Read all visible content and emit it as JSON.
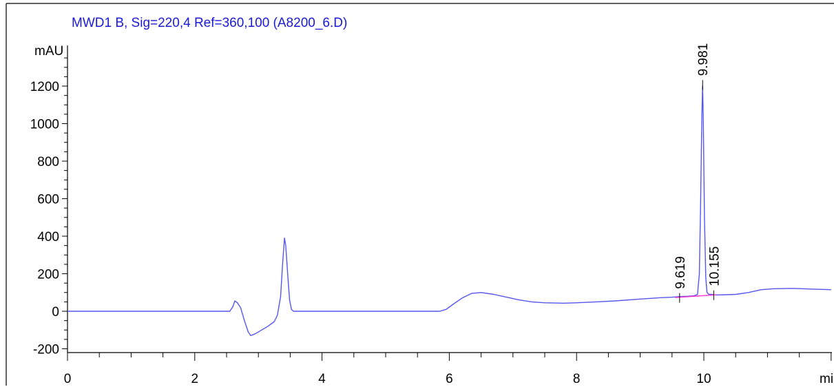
{
  "chart_data": {
    "type": "line",
    "title": "MWD1 B, Sig=220,4 Ref=360,100 (A8200_6.D)",
    "ylabel": "mAU",
    "xlabel": "min",
    "xlim": [
      0,
      12
    ],
    "ylim": [
      -220,
      1420
    ],
    "x_ticks": [
      0,
      2,
      4,
      6,
      8,
      10
    ],
    "y_ticks": [
      -200,
      0,
      200,
      400,
      600,
      800,
      1000,
      1200
    ],
    "colors": {
      "trace": "#5555f0",
      "baseline": "#ff33cc",
      "frame": "#000000",
      "title": "#1a1ad6"
    },
    "series": [
      {
        "x": [
          0.0,
          0.7,
          0.71,
          2.55,
          2.6,
          2.63,
          2.67,
          2.72,
          2.78,
          2.84,
          2.88,
          2.95,
          3.05,
          3.15,
          3.25,
          3.3,
          3.35,
          3.38,
          3.41,
          3.43,
          3.46,
          3.49,
          3.52,
          3.55,
          3.6,
          5.85,
          5.95,
          6.05,
          6.2,
          6.35,
          6.5,
          6.7,
          6.9,
          7.1,
          7.3,
          7.5,
          7.8,
          8.0,
          8.3,
          8.6,
          9.0,
          9.3,
          9.5,
          9.62,
          9.75,
          9.85,
          9.9,
          9.93,
          9.95,
          9.97,
          9.98,
          9.99,
          10.01,
          10.03,
          10.05,
          10.08,
          10.12,
          10.16,
          10.2,
          10.35,
          10.5,
          10.7,
          10.9,
          11.1,
          11.4,
          11.7,
          12.0
        ],
        "y": [
          0,
          0,
          0,
          0,
          25,
          55,
          45,
          20,
          -50,
          -110,
          -130,
          -120,
          -100,
          -80,
          -55,
          -20,
          80,
          250,
          390,
          350,
          200,
          60,
          10,
          0,
          0,
          0,
          10,
          35,
          70,
          95,
          100,
          90,
          75,
          60,
          50,
          45,
          43,
          45,
          50,
          55,
          65,
          72,
          75,
          78,
          80,
          83,
          90,
          200,
          600,
          1050,
          1200,
          1050,
          500,
          180,
          100,
          90,
          90,
          88,
          87,
          88,
          90,
          100,
          115,
          120,
          122,
          118,
          115
        ]
      }
    ],
    "baseline_segments": [
      {
        "x": [
          9.55,
          10.2
        ],
        "y": [
          73,
          88
        ]
      }
    ],
    "peaks": [
      {
        "label": "9.619",
        "x": 9.619,
        "y": 75
      },
      {
        "label": "9.981",
        "x": 9.981,
        "y": 1210
      },
      {
        "label": "10.155",
        "x": 10.155,
        "y": 89
      }
    ]
  }
}
